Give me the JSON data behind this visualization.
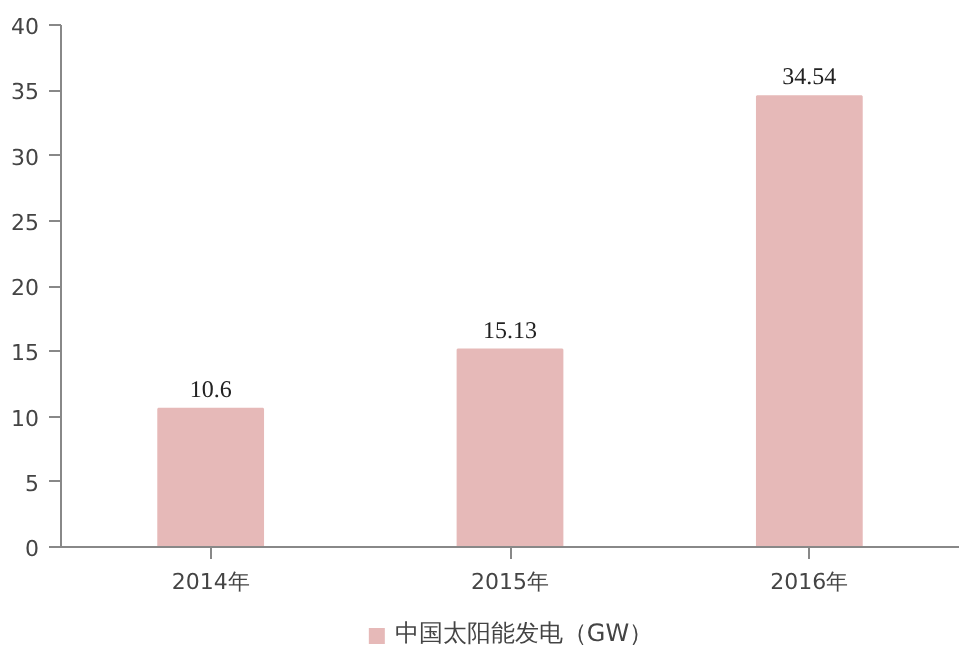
{
  "chart_data": {
    "type": "bar",
    "categories": [
      "2014年",
      "2015年",
      "2016年"
    ],
    "series": [
      {
        "name": "中国太阳能发电（GW）",
        "color": "#e6b9b8",
        "values": [
          10.6,
          15.13,
          34.54
        ]
      }
    ],
    "ylim": [
      0,
      40
    ],
    "yticks": [
      0,
      5,
      10,
      15,
      20,
      25,
      30,
      35,
      40
    ],
    "data_labels": true,
    "legend": "bottom",
    "grid": false
  }
}
